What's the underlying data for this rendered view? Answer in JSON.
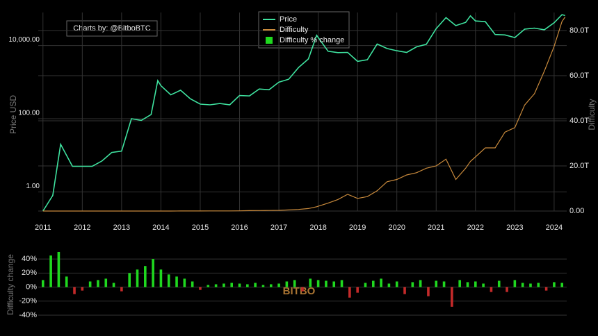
{
  "chart_data": [
    {
      "type": "line",
      "annotation": "Charts by: @BitboBTC",
      "y_label": "Price USD",
      "y2_label": "Difficulty",
      "log_y": true,
      "grid": true,
      "legend": "top",
      "x": [
        2011.0,
        2011.25,
        2011.45,
        2011.75,
        2012.0,
        2012.25,
        2012.5,
        2012.75,
        2013.0,
        2013.25,
        2013.5,
        2013.75,
        2013.92,
        2014.0,
        2014.25,
        2014.5,
        2014.75,
        2015.0,
        2015.25,
        2015.5,
        2015.75,
        2016.0,
        2016.25,
        2016.5,
        2016.75,
        2017.0,
        2017.25,
        2017.5,
        2017.75,
        2017.96,
        2018.25,
        2018.5,
        2018.75,
        2019.0,
        2019.25,
        2019.5,
        2019.75,
        2020.0,
        2020.25,
        2020.5,
        2020.75,
        2021.0,
        2021.25,
        2021.5,
        2021.75,
        2021.87,
        2022.0,
        2022.25,
        2022.5,
        2022.75,
        2023.0,
        2023.25,
        2023.5,
        2023.75,
        2024.0,
        2024.2,
        2024.28
      ],
      "xlim": [
        2010.88,
        2024.32
      ],
      "xticks": [
        2011,
        2012,
        2013,
        2014,
        2015,
        2016,
        2017,
        2018,
        2019,
        2020,
        2021,
        2022,
        2023,
        2024
      ],
      "ylim": [
        0.3,
        80000
      ],
      "yticks": [
        {
          "value": 1,
          "label": "1.00"
        },
        {
          "value": 100,
          "label": "100.00"
        },
        {
          "value": 10000,
          "label": "10,000.00"
        }
      ],
      "y2lim": [
        0,
        88000000000000
      ],
      "y2ticks": [
        {
          "value": 0,
          "label": "0.00"
        },
        {
          "value": 20000000000000,
          "label": "20.0T"
        },
        {
          "value": 40000000000000,
          "label": "40.0T"
        },
        {
          "value": 60000000000000,
          "label": "60.0T"
        },
        {
          "value": 80000000000000,
          "label": "80.0T"
        }
      ],
      "series": [
        {
          "name": "Price",
          "color": "#3fe3a0",
          "values": [
            0.3,
            0.8,
            20,
            5,
            5,
            5,
            7,
            12,
            13,
            100,
            90,
            130,
            1100,
            800,
            450,
            600,
            350,
            250,
            240,
            260,
            240,
            430,
            420,
            650,
            620,
            1000,
            1200,
            2500,
            4300,
            19000,
            7000,
            6400,
            6500,
            3700,
            4100,
            11000,
            8300,
            7200,
            6500,
            9200,
            10800,
            29000,
            58000,
            35000,
            43000,
            65000,
            47000,
            45000,
            20000,
            19500,
            16500,
            28000,
            30000,
            27000,
            42000,
            70000,
            66000
          ]
        },
        {
          "name": "Difficulty",
          "color": "#c98a3c",
          "axis": "y2",
          "values": [
            15000,
            90000,
            900000,
            1200000,
            1200000,
            1700000,
            2000000,
            2900000,
            3300000,
            8900000,
            26000000,
            190000000,
            700000000,
            1400000000,
            6100000000,
            17000000000,
            35000000000,
            44000000000,
            47000000000,
            51000000000,
            60000000000,
            100000000000,
            180000000000,
            210000000000,
            250000000000,
            320000000000,
            500000000000,
            700000000000,
            1100000000000,
            1900000000000,
            3500000000000,
            5100000000000,
            7400000000000,
            5600000000000,
            6400000000000,
            9000000000000,
            13000000000000,
            14000000000000,
            16000000000000,
            17000000000000,
            19000000000000,
            20000000000000,
            23000000000000,
            14000000000000,
            19000000000000,
            22000000000000,
            24000000000000,
            28000000000000,
            28000000000000,
            35000000000000,
            37000000000000,
            47000000000000,
            52000000000000,
            62000000000000,
            73000000000000,
            84000000000000,
            86000000000000
          ]
        }
      ]
    },
    {
      "type": "bar",
      "y_label": "Difficulty change",
      "watermark": "BITBO",
      "grid": true,
      "xlim": [
        2010.88,
        2024.32
      ],
      "ylim": [
        -40,
        48
      ],
      "yticks": [
        {
          "value": 40,
          "label": "40%"
        },
        {
          "value": 20,
          "label": "20%"
        },
        {
          "value": 0,
          "label": "0%"
        },
        {
          "value": -20,
          "label": "-20%"
        },
        {
          "value": -40,
          "label": "-40%"
        }
      ],
      "series": [
        {
          "name": "Difficulty % change",
          "color": "#1fd81f",
          "negative_color": "#c42a2a",
          "x": [
            2011.0,
            2011.2,
            2011.4,
            2011.6,
            2011.8,
            2012.0,
            2012.2,
            2012.4,
            2012.6,
            2012.8,
            2013.0,
            2013.2,
            2013.4,
            2013.6,
            2013.8,
            2014.0,
            2014.2,
            2014.4,
            2014.6,
            2014.8,
            2015.0,
            2015.2,
            2015.4,
            2015.6,
            2015.8,
            2016.0,
            2016.2,
            2016.4,
            2016.6,
            2016.8,
            2017.0,
            2017.2,
            2017.4,
            2017.6,
            2017.8,
            2018.0,
            2018.2,
            2018.4,
            2018.6,
            2018.8,
            2019.0,
            2019.2,
            2019.4,
            2019.6,
            2019.8,
            2020.0,
            2020.2,
            2020.4,
            2020.6,
            2020.8,
            2021.0,
            2021.2,
            2021.4,
            2021.6,
            2021.8,
            2022.0,
            2022.2,
            2022.4,
            2022.6,
            2022.8,
            2023.0,
            2023.2,
            2023.4,
            2023.6,
            2023.8,
            2024.0,
            2024.2
          ],
          "values": [
            10,
            45,
            50,
            15,
            -10,
            -5,
            8,
            10,
            12,
            6,
            -6,
            20,
            25,
            30,
            40,
            25,
            18,
            15,
            12,
            8,
            -4,
            3,
            4,
            5,
            6,
            5,
            4,
            6,
            3,
            4,
            5,
            8,
            10,
            -6,
            12,
            10,
            9,
            8,
            10,
            -15,
            -8,
            6,
            9,
            12,
            5,
            8,
            -10,
            7,
            10,
            -13,
            9,
            8,
            -28,
            10,
            7,
            8,
            5,
            -7,
            9,
            -7,
            10,
            6,
            5,
            6,
            -5,
            7,
            6
          ]
        }
      ]
    }
  ]
}
